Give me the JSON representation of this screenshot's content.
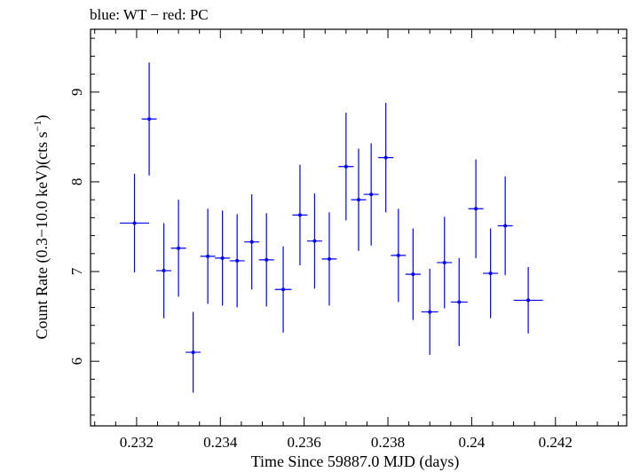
{
  "chart_data": {
    "type": "scatter",
    "title": "blue: WT − red: PC",
    "xlabel": "Time Since 59887.0 MJD (days)",
    "ylabel_main": "Count Rate (0.3−10.0 keV)(cts s",
    "ylabel_sup": "−1",
    "ylabel_close": ")",
    "xlim": [
      0.2309,
      0.2437
    ],
    "ylim": [
      5.28,
      9.7
    ],
    "x_ticks": [
      0.232,
      0.234,
      0.236,
      0.238,
      0.24,
      0.242
    ],
    "x_tick_labels": [
      "0.232",
      "0.234",
      "0.236",
      "0.238",
      "0.24",
      "0.242"
    ],
    "y_ticks": [
      6,
      7,
      8,
      9
    ],
    "y_tick_labels": [
      "6",
      "7",
      "8",
      "9"
    ],
    "grid": false,
    "series": [
      {
        "color": "#0000ff",
        "points": [
          {
            "x": 0.23195,
            "xerr": 0.00035,
            "y": 7.54,
            "yerr": 0.55
          },
          {
            "x": 0.2323,
            "xerr": 0.00018,
            "y": 8.7,
            "yerr": 0.63
          },
          {
            "x": 0.23265,
            "xerr": 0.00018,
            "y": 7.01,
            "yerr": 0.53
          },
          {
            "x": 0.233,
            "xerr": 0.00018,
            "y": 7.26,
            "yerr": 0.54
          },
          {
            "x": 0.23335,
            "xerr": 0.00018,
            "y": 6.1,
            "yerr": 0.45
          },
          {
            "x": 0.2337,
            "xerr": 0.00018,
            "y": 7.17,
            "yerr": 0.53
          },
          {
            "x": 0.23405,
            "xerr": 0.00018,
            "y": 7.15,
            "yerr": 0.53
          },
          {
            "x": 0.2344,
            "xerr": 0.00018,
            "y": 7.12,
            "yerr": 0.52
          },
          {
            "x": 0.23475,
            "xerr": 0.00018,
            "y": 7.33,
            "yerr": 0.53
          },
          {
            "x": 0.2351,
            "xerr": 0.00018,
            "y": 7.13,
            "yerr": 0.52
          },
          {
            "x": 0.2355,
            "xerr": 0.0002,
            "y": 6.8,
            "yerr": 0.48
          },
          {
            "x": 0.2359,
            "xerr": 0.00018,
            "y": 7.63,
            "yerr": 0.56
          },
          {
            "x": 0.23625,
            "xerr": 0.00018,
            "y": 7.34,
            "yerr": 0.53
          },
          {
            "x": 0.2366,
            "xerr": 0.00018,
            "y": 7.14,
            "yerr": 0.52
          },
          {
            "x": 0.237,
            "xerr": 0.00018,
            "y": 8.17,
            "yerr": 0.6
          },
          {
            "x": 0.2373,
            "xerr": 0.00018,
            "y": 7.8,
            "yerr": 0.57
          },
          {
            "x": 0.2376,
            "xerr": 0.00018,
            "y": 7.86,
            "yerr": 0.57
          },
          {
            "x": 0.23795,
            "xerr": 0.00018,
            "y": 8.27,
            "yerr": 0.61
          },
          {
            "x": 0.23825,
            "xerr": 0.00018,
            "y": 7.18,
            "yerr": 0.52
          },
          {
            "x": 0.2386,
            "xerr": 0.00018,
            "y": 6.97,
            "yerr": 0.51
          },
          {
            "x": 0.239,
            "xerr": 0.0002,
            "y": 6.55,
            "yerr": 0.48
          },
          {
            "x": 0.23935,
            "xerr": 0.00018,
            "y": 7.1,
            "yerr": 0.51
          },
          {
            "x": 0.2397,
            "xerr": 0.0002,
            "y": 6.66,
            "yerr": 0.49
          },
          {
            "x": 0.2401,
            "xerr": 0.00018,
            "y": 7.7,
            "yerr": 0.55
          },
          {
            "x": 0.24045,
            "xerr": 0.00018,
            "y": 6.98,
            "yerr": 0.5
          },
          {
            "x": 0.2408,
            "xerr": 0.00018,
            "y": 7.51,
            "yerr": 0.55
          },
          {
            "x": 0.24135,
            "xerr": 0.00035,
            "y": 6.68,
            "yerr": 0.37
          }
        ]
      }
    ]
  }
}
